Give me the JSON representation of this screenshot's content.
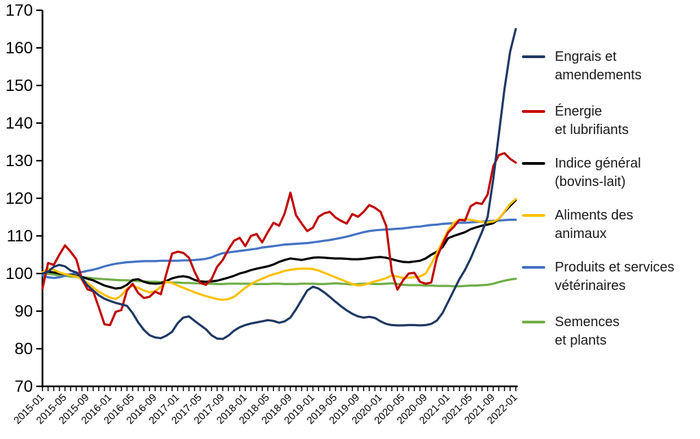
{
  "chart_data": {
    "type": "line",
    "title": "",
    "xlabel": "",
    "ylabel": "",
    "ylim": [
      70,
      170
    ],
    "y_tick_step": 10,
    "y_tick_labels": [
      "70",
      "80",
      "90",
      "100",
      "110",
      "120",
      "130",
      "140",
      "150",
      "160",
      "170"
    ],
    "grid": false,
    "legend_position": "right",
    "n_points": 85,
    "x_start": "2015-01",
    "x_end": "2022-01",
    "x_tick_every": 4,
    "x_tick_labels": [
      "2015-01",
      "2015-05",
      "2015-09",
      "2016-01",
      "2016-05",
      "2016-09",
      "2017-01",
      "2017-05",
      "2017-09",
      "2018-01",
      "2018-05",
      "2018-09",
      "2019-01",
      "2019-05",
      "2019-09",
      "2020-01",
      "2020-05",
      "2020-09",
      "2021-01",
      "2021-05",
      "2021-09",
      "2022-01"
    ],
    "series": [
      {
        "name": "Semences et plants",
        "label": "Semences\net plants",
        "color": "#70ad47",
        "values": [
          100.0,
          99.9,
          99.7,
          99.5,
          99.4,
          99.2,
          99.1,
          99.0,
          98.9,
          98.7,
          98.6,
          98.5,
          98.4,
          98.3,
          98.2,
          98.2,
          98.1,
          98.0,
          97.9,
          97.8,
          97.8,
          97.7,
          97.7,
          97.6,
          97.6,
          97.5,
          97.5,
          97.4,
          97.4,
          97.3,
          97.3,
          97.2,
          97.2,
          97.3,
          97.3,
          97.3,
          97.3,
          97.3,
          97.2,
          97.2,
          97.2,
          97.3,
          97.3,
          97.2,
          97.2,
          97.2,
          97.3,
          97.3,
          97.3,
          97.2,
          97.2,
          97.3,
          97.4,
          97.3,
          97.2,
          97.1,
          97.2,
          97.3,
          97.3,
          97.2,
          97.2,
          97.3,
          97.4,
          97.2,
          97.0,
          96.9,
          96.9,
          96.9,
          96.8,
          96.8,
          96.7,
          96.7,
          96.7,
          96.6,
          96.6,
          96.7,
          96.8,
          96.8,
          96.9,
          97.0,
          97.3,
          97.7,
          98.1,
          98.4,
          98.6
        ]
      },
      {
        "name": "Produits et services vétérinaires",
        "label": "Produits et services\nvétérinaires",
        "color": "#4472c4",
        "values": [
          99.5,
          99.0,
          98.8,
          99.0,
          99.4,
          99.8,
          100.1,
          100.4,
          100.7,
          101.0,
          101.4,
          101.9,
          102.3,
          102.6,
          102.8,
          103.0,
          103.1,
          103.2,
          103.3,
          103.3,
          103.3,
          103.4,
          103.4,
          103.4,
          103.4,
          103.5,
          103.5,
          103.6,
          103.7,
          103.9,
          104.3,
          104.9,
          105.4,
          105.6,
          105.8,
          106.0,
          106.2,
          106.4,
          106.6,
          106.9,
          107.1,
          107.3,
          107.5,
          107.7,
          107.8,
          107.9,
          108.0,
          108.1,
          108.3,
          108.5,
          108.7,
          108.9,
          109.2,
          109.5,
          109.8,
          110.2,
          110.6,
          111.0,
          111.3,
          111.5,
          111.6,
          111.7,
          111.8,
          111.9,
          112.0,
          112.2,
          112.4,
          112.5,
          112.7,
          112.9,
          113.0,
          113.2,
          113.3,
          113.4,
          113.5,
          113.5,
          113.6,
          113.7,
          113.8,
          113.9,
          114.0,
          114.1,
          114.2,
          114.3,
          114.3
        ]
      },
      {
        "name": "Indice général (bovins-lait)",
        "label": "Indice général\n(bovins-lait)",
        "color": "#000000",
        "values": [
          100.0,
          100.5,
          100.3,
          100.0,
          99.8,
          99.6,
          99.4,
          99.1,
          98.6,
          98.2,
          97.5,
          96.8,
          96.4,
          96.0,
          96.2,
          97.0,
          98.3,
          98.5,
          97.8,
          97.4,
          97.3,
          97.4,
          98.0,
          98.7,
          99.1,
          99.3,
          99.0,
          98.3,
          97.9,
          97.8,
          97.9,
          98.1,
          98.5,
          98.9,
          99.4,
          100.0,
          100.4,
          100.9,
          101.3,
          101.6,
          101.9,
          102.4,
          103.1,
          103.6,
          104.0,
          103.8,
          103.6,
          103.9,
          104.2,
          104.3,
          104.2,
          104.1,
          104.0,
          104.0,
          103.9,
          103.8,
          103.8,
          103.9,
          104.1,
          104.3,
          104.4,
          104.2,
          103.8,
          103.4,
          103.1,
          103.0,
          103.2,
          103.4,
          104.0,
          105.0,
          105.8,
          107.0,
          109.4,
          110.0,
          110.5,
          111.0,
          111.8,
          112.3,
          112.7,
          113.0,
          113.4,
          114.5,
          116.4,
          118.0,
          119.5
        ]
      },
      {
        "name": "Aliments des animaux",
        "label": "Aliments des\nanimaux",
        "color": "#ffc000",
        "values": [
          100.3,
          101.3,
          101.0,
          100.3,
          99.8,
          99.5,
          99.2,
          98.5,
          97.5,
          96.3,
          95.2,
          94.3,
          93.6,
          93.2,
          94.2,
          96.0,
          96.8,
          96.2,
          95.5,
          95.0,
          95.3,
          96.5,
          97.8,
          97.5,
          96.8,
          96.2,
          95.6,
          95.0,
          94.5,
          94.0,
          93.6,
          93.2,
          93.0,
          93.2,
          93.8,
          95.0,
          96.2,
          97.2,
          98.0,
          98.6,
          99.3,
          99.8,
          100.2,
          100.7,
          101.0,
          101.2,
          101.3,
          101.3,
          101.2,
          100.8,
          100.2,
          99.6,
          99.0,
          98.4,
          97.8,
          97.2,
          96.8,
          97.0,
          97.4,
          97.9,
          98.3,
          98.8,
          99.5,
          99.2,
          98.8,
          98.9,
          99.0,
          99.2,
          100.0,
          102.5,
          105.5,
          108.5,
          111.5,
          113.5,
          114.3,
          114.4,
          114.3,
          114.0,
          113.7,
          113.6,
          113.8,
          114.5,
          116.5,
          118.5,
          119.8
        ]
      },
      {
        "name": "Énergie et lubrifiants",
        "label": "Énergie\net lubrifiants",
        "color": "#c00000",
        "values": [
          96.0,
          102.8,
          102.3,
          105.0,
          107.5,
          105.8,
          103.8,
          98.5,
          95.8,
          95.3,
          91.0,
          86.5,
          86.3,
          89.8,
          90.3,
          95.5,
          97.3,
          94.8,
          93.5,
          93.8,
          95.2,
          94.5,
          100.0,
          105.3,
          105.8,
          105.5,
          104.2,
          100.5,
          97.5,
          97.0,
          98.5,
          101.8,
          103.6,
          106.4,
          108.7,
          109.5,
          107.3,
          110.0,
          110.5,
          108.3,
          111.0,
          113.5,
          112.7,
          116.0,
          121.5,
          115.5,
          113.3,
          111.3,
          112.2,
          115.1,
          116.0,
          116.4,
          114.9,
          114.0,
          113.3,
          115.8,
          115.1,
          116.4,
          118.2,
          117.5,
          116.4,
          112.7,
          100.5,
          95.7,
          98.2,
          100.0,
          100.2,
          97.8,
          97.3,
          97.6,
          104.2,
          107.8,
          110.9,
          112.4,
          114.3,
          114.1,
          117.9,
          118.8,
          118.5,
          121.0,
          128.5,
          131.5,
          132.0,
          130.5,
          129.5
        ]
      },
      {
        "name": "Engrais et amendements",
        "label": "Engrais et\namendements",
        "color": "#1f3864",
        "values": [
          100.0,
          100.5,
          101.8,
          102.3,
          101.9,
          100.8,
          100.3,
          98.8,
          96.8,
          95.5,
          94.2,
          93.3,
          92.7,
          92.2,
          91.8,
          91.4,
          89.5,
          87.0,
          85.0,
          83.6,
          83.0,
          82.8,
          83.5,
          84.5,
          86.8,
          88.3,
          88.6,
          87.4,
          86.3,
          85.2,
          83.6,
          82.7,
          82.6,
          83.5,
          84.8,
          85.7,
          86.3,
          86.7,
          87.0,
          87.3,
          87.6,
          87.4,
          86.9,
          87.3,
          88.3,
          90.5,
          93.0,
          95.5,
          96.5,
          96.0,
          95.0,
          93.8,
          92.5,
          91.3,
          90.2,
          89.3,
          88.6,
          88.3,
          88.5,
          88.2,
          87.3,
          86.6,
          86.3,
          86.2,
          86.2,
          86.3,
          86.3,
          86.2,
          86.3,
          86.6,
          87.5,
          89.5,
          92.5,
          95.5,
          98.5,
          101.0,
          104.0,
          107.5,
          111.0,
          115.0,
          125.0,
          137.0,
          149.0,
          159.0,
          165.0
        ]
      }
    ],
    "legend_order": [
      "Engrais et amendements",
      "Énergie et lubrifiants",
      "Indice général (bovins-lait)",
      "Aliments des animaux",
      "Produits et services vétérinaires",
      "Semences et plants"
    ]
  }
}
